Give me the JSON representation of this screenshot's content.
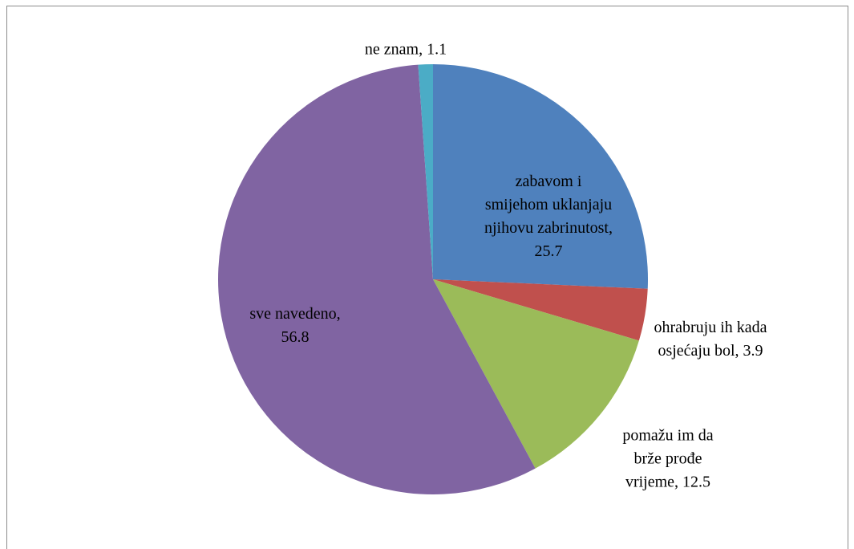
{
  "chart_data": {
    "type": "pie",
    "categories": [
      "zabavom i smijehom uklanjaju njihovu zabrinutost",
      "ohrabruju ih kada osjećaju bol",
      "pomažu im da brže prođe vrijeme",
      "sve navedeno",
      "ne znam"
    ],
    "values": [
      25.7,
      3.9,
      12.5,
      56.8,
      1.1
    ],
    "colors": [
      "#4f81bd",
      "#c0504d",
      "#9bbb59",
      "#8064a2",
      "#4bacc6"
    ],
    "label_separator": ", "
  }
}
